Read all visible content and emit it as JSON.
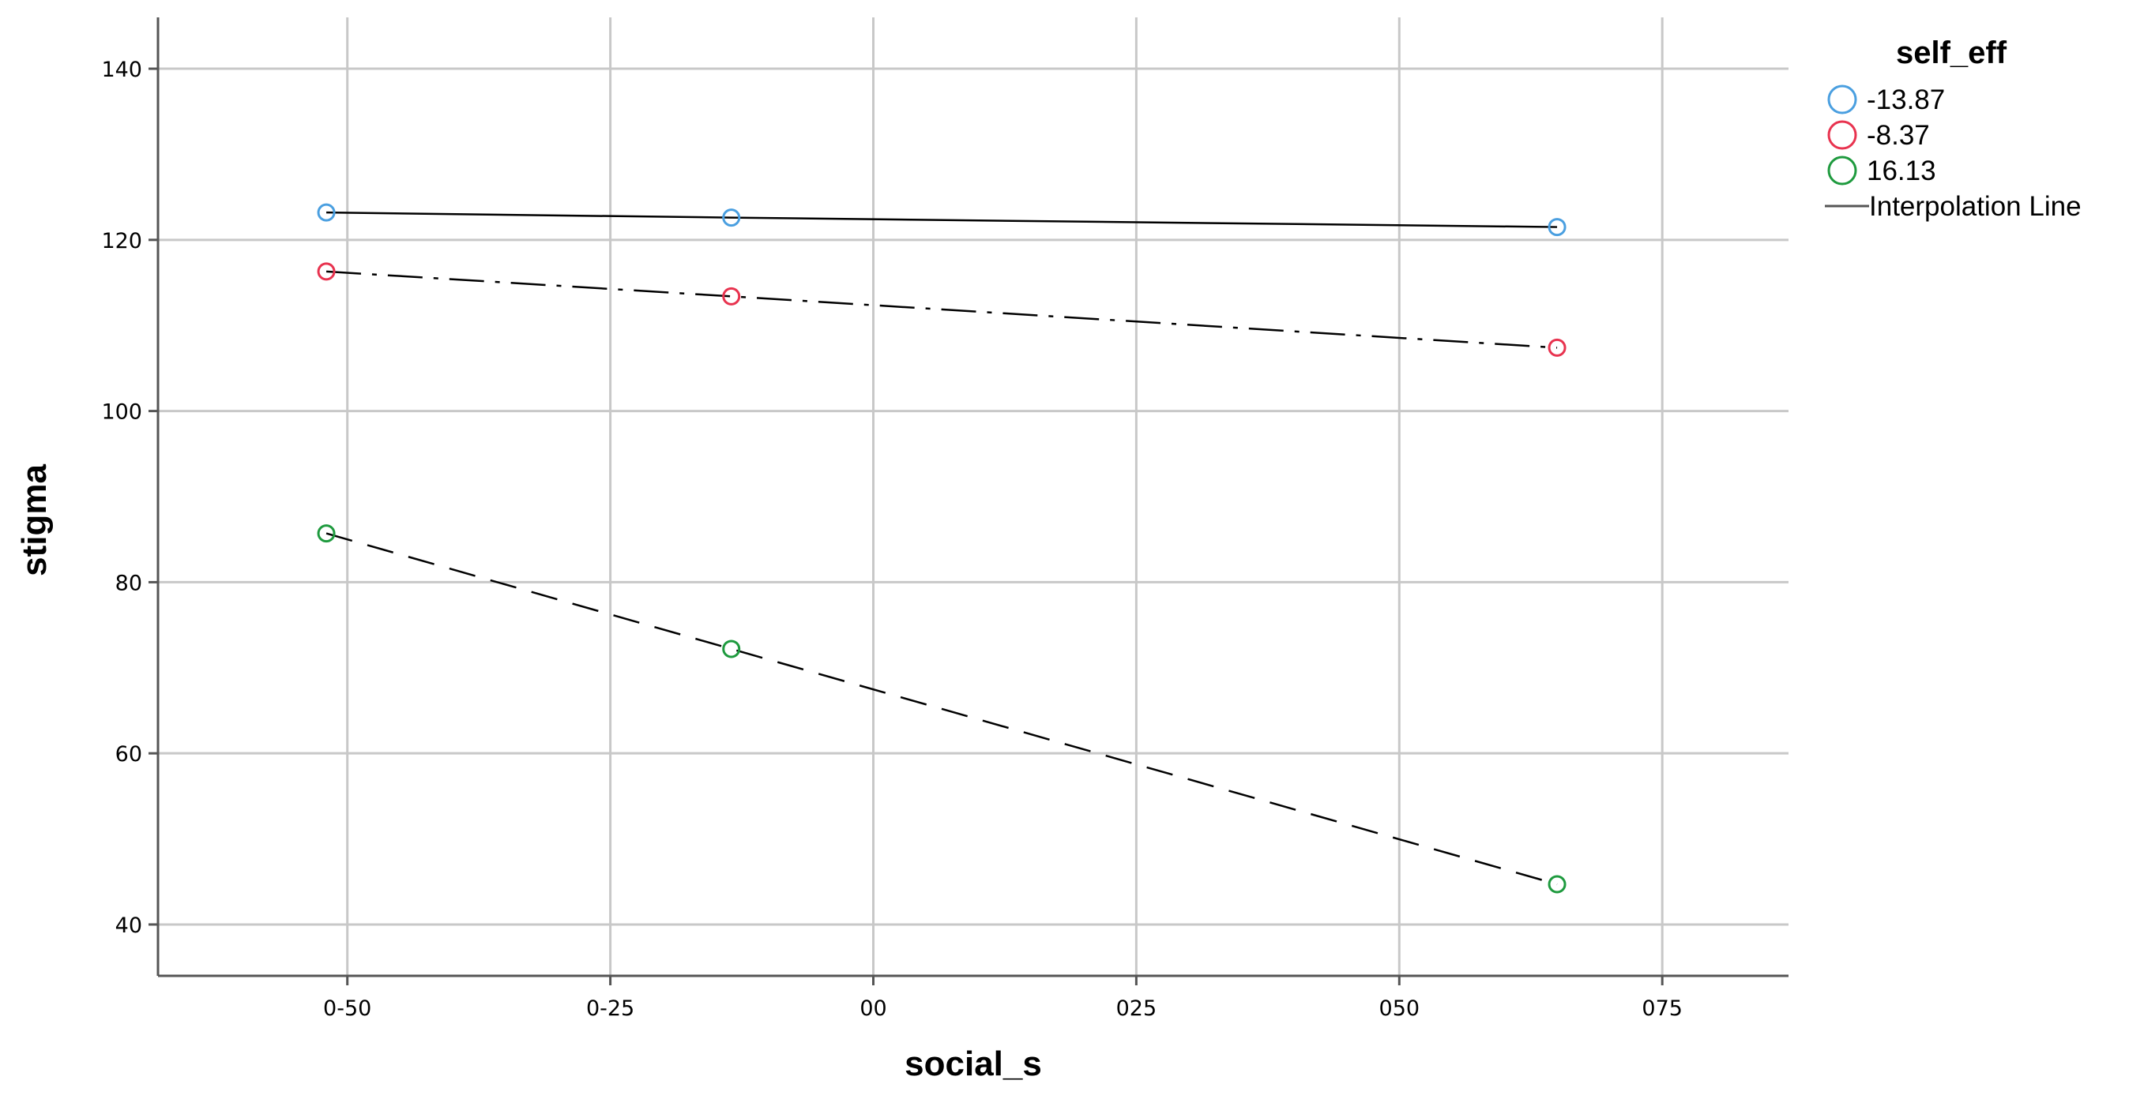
{
  "chart_data": {
    "type": "line",
    "title": "",
    "xlabel": "social_s",
    "ylabel": "stigma",
    "xlim": [
      -0.68,
      0.87
    ],
    "ylim": [
      34,
      146
    ],
    "x_ticks": [
      -0.5,
      -0.25,
      0,
      0.25,
      0.5,
      0.75
    ],
    "x_tick_labels": [
      "0-50",
      "0-25",
      "00",
      "025",
      "050",
      "075"
    ],
    "y_ticks": [
      40,
      60,
      80,
      100,
      120,
      140
    ],
    "y_tick_labels": [
      "40",
      "60",
      "80",
      "100",
      "120",
      "140"
    ],
    "grid": true,
    "legend": {
      "title": "self_eff",
      "position": "right",
      "interpolation_label": "Interpolation Line"
    },
    "x": [
      -0.52,
      -0.135,
      0.65
    ],
    "series": [
      {
        "name": "-13.87",
        "color": "#4a9fe0",
        "dash": "solid",
        "values": [
          123.2,
          122.6,
          121.5
        ]
      },
      {
        "name": "-8.37",
        "color": "#e8334f",
        "dash": "dashdot",
        "values": [
          116.3,
          113.4,
          107.4
        ]
      },
      {
        "name": "16.13",
        "color": "#1e9a3e",
        "dash": "dashed",
        "values": [
          85.7,
          72.2,
          44.7
        ]
      }
    ]
  }
}
